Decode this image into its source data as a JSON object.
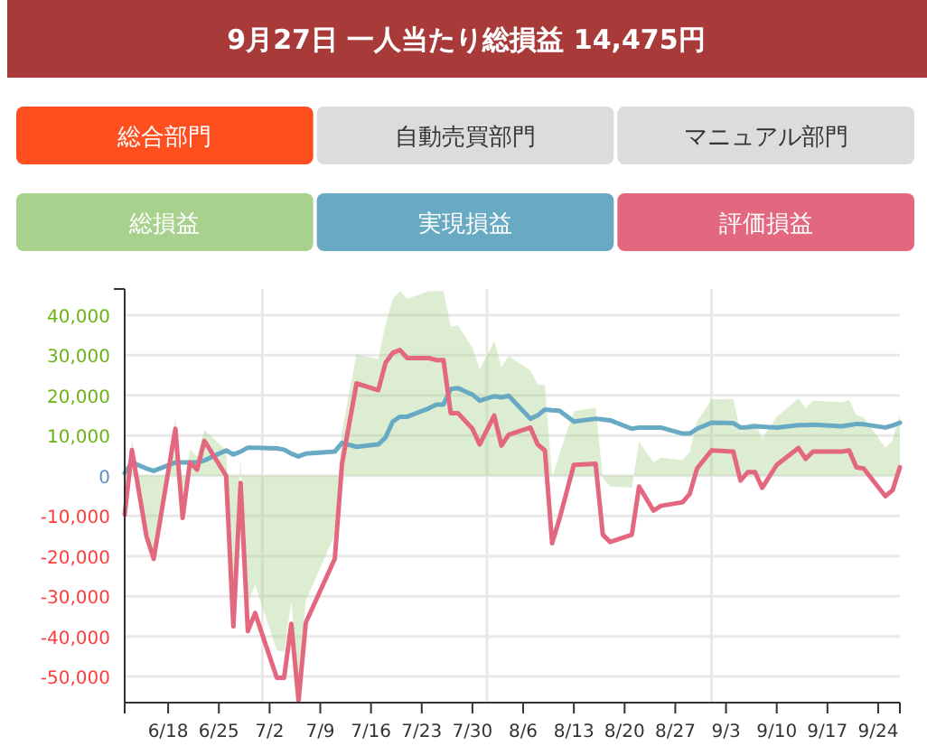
{
  "chart_data": {
    "type": "line",
    "title": "9月27日 一人当たり総損益 14,475円",
    "annotations": [
      "総合部門",
      "自動売買部門",
      "マニュアル部門"
    ],
    "x": [
      "--06-12",
      "--06-13",
      "--06-15",
      "--06-16",
      "--06-19",
      "--06-20",
      "--06-21",
      "--06-22",
      "--06-23",
      "--06-26",
      "--06-27",
      "--06-28",
      "--06-29",
      "--06-30",
      "--07-03",
      "--07-04",
      "--07-05",
      "--07-06",
      "--07-07",
      "--07-11",
      "--07-12",
      "--07-14",
      "--07-17",
      "--07-18",
      "--07-19",
      "--07-20",
      "--07-21",
      "--07-24",
      "--07-25",
      "--07-26",
      "--07-27",
      "--07-28",
      "--07-30",
      "--07-31",
      "--08-02",
      "--08-03",
      "--08-04",
      "--08-07",
      "--08-08",
      "--08-09",
      "--08-10",
      "--08-11",
      "--08-13",
      "--08-16",
      "--08-17",
      "--08-18",
      "--08-21",
      "--08-22",
      "--08-24",
      "--08-25",
      "--08-28",
      "--08-29",
      "--08-30",
      "--09-01",
      "--09-04",
      "--09-05",
      "--09-06",
      "--09-07",
      "--09-08",
      "--09-10",
      "--09-13",
      "--09-14",
      "--09-15",
      "--09-19",
      "--09-20",
      "--09-21",
      "--09-22",
      "--09-25",
      "--09-26",
      "--09-27"
    ],
    "series": [
      {
        "name": "総損益",
        "type": "area",
        "color": "#a9d18e",
        "values": [
          -9000,
          9000,
          -13200,
          -19500,
          14500,
          -7200,
          6600,
          4800,
          11500,
          6300,
          -32200,
          4200,
          -31700,
          -27200,
          -43500,
          -43800,
          -31400,
          -51200,
          -31100,
          -14700,
          11200,
          30200,
          29100,
          37600,
          44100,
          46000,
          44000,
          46000,
          46000,
          46000,
          37200,
          37400,
          31900,
          26500,
          33500,
          27000,
          29800,
          26200,
          22800,
          22600,
          -500,
          5400,
          16100,
          17000,
          -700,
          -2700,
          -3000,
          8500,
          3300,
          4500,
          3900,
          6000,
          13500,
          19000,
          19100,
          10800,
          13000,
          13200,
          9200,
          14700,
          19300,
          16800,
          18700,
          18300,
          18900,
          15000,
          14600,
          6900,
          8900,
          15300
        ]
      },
      {
        "name": "実現損益",
        "type": "line",
        "color": "#68aac3",
        "values": [
          700,
          3300,
          1800,
          1200,
          3300,
          3300,
          3300,
          3300,
          3800,
          6300,
          5300,
          6000,
          7000,
          7000,
          6800,
          6500,
          5500,
          4800,
          5500,
          6000,
          8200,
          7200,
          7800,
          9500,
          13500,
          14700,
          14700,
          16800,
          17700,
          17700,
          21600,
          21800,
          20200,
          18700,
          19800,
          19500,
          19900,
          14200,
          15000,
          16500,
          16300,
          16200,
          13500,
          14200,
          14000,
          13800,
          11700,
          12000,
          12000,
          12000,
          10500,
          10500,
          11700,
          13200,
          13100,
          12000,
          12100,
          12300,
          12200,
          12000,
          12600,
          12600,
          12700,
          12300,
          12600,
          12900,
          12800,
          12000,
          12500,
          13200
        ]
      },
      {
        "name": "評価損益",
        "type": "line",
        "color": "#e3687f",
        "values": [
          -9700,
          6400,
          -15000,
          -20700,
          11700,
          -10500,
          3300,
          1500,
          8700,
          0,
          -37500,
          -1800,
          -38700,
          -34200,
          -50300,
          -50300,
          -36900,
          -56000,
          -36600,
          -20700,
          3000,
          23000,
          21300,
          28100,
          30600,
          31300,
          29300,
          29300,
          28800,
          28800,
          15600,
          15600,
          11700,
          7800,
          15000,
          7500,
          10200,
          12000,
          7800,
          6300,
          -16800,
          -10800,
          2700,
          3000,
          -14700,
          -16500,
          -14700,
          -2700,
          -8700,
          -7500,
          -6600,
          -4500,
          1800,
          6300,
          6000,
          -1200,
          900,
          900,
          -3000,
          2700,
          6900,
          4200,
          6000,
          6000,
          6300,
          2100,
          1800,
          -5100,
          -3600,
          2100
        ]
      }
    ],
    "xlim": [
      "--06-12",
      "--09-27"
    ],
    "xticks": [
      {
        "value": "--06-18",
        "label": "6/18"
      },
      {
        "value": "--06-25",
        "label": "6/25"
      },
      {
        "value": "--07-01",
        "label": null
      },
      {
        "value": "--07-02",
        "label": "7/2"
      },
      {
        "value": "--07-09",
        "label": "7/9"
      },
      {
        "value": "--07-16",
        "label": "7/16"
      },
      {
        "value": "--07-23",
        "label": "7/23"
      },
      {
        "value": "--07-30",
        "label": "7/30"
      },
      {
        "value": "--08-01",
        "label": null
      },
      {
        "value": "--08-06",
        "label": "8/6"
      },
      {
        "value": "--08-13",
        "label": "8/13"
      },
      {
        "value": "--08-20",
        "label": "8/20"
      },
      {
        "value": "--08-27",
        "label": "8/27"
      },
      {
        "value": "--09-01",
        "label": null
      },
      {
        "value": "--09-03",
        "label": "9/3"
      },
      {
        "value": "--09-10",
        "label": "9/10"
      },
      {
        "value": "--09-17",
        "label": "9/17"
      },
      {
        "value": "--09-24",
        "label": "9/24"
      }
    ],
    "ylim": [
      -56500,
      46500
    ],
    "yticks": [
      {
        "value": -50000,
        "label": "-50,000"
      },
      {
        "value": -40000,
        "label": "-40,000"
      },
      {
        "value": -30000,
        "label": "-30,000"
      },
      {
        "value": -20000,
        "label": "-20,000"
      },
      {
        "value": -10000,
        "label": "-10,000"
      },
      0,
      {
        "value": 10000,
        "label": "10,000"
      },
      {
        "value": 20000,
        "label": "20,000"
      },
      {
        "value": 30000,
        "label": "30,000"
      },
      {
        "value": 40000,
        "label": "40,000"
      }
    ],
    "grid": true,
    "legend": "top"
  }
}
